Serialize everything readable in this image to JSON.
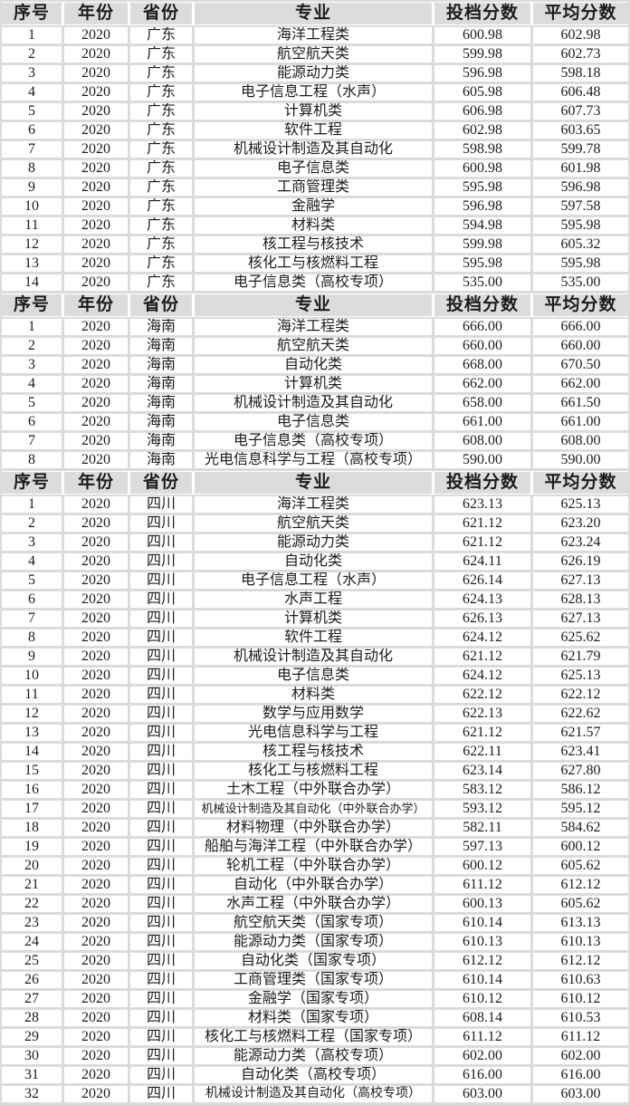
{
  "style_tokens": {
    "header_bg": "#dcdcdc",
    "grid_line": "#dbdbdb",
    "cell_bg": "#ffffff",
    "text_color": "#1c1c1c"
  },
  "table": {
    "column_headers": [
      "序号",
      "年份",
      "省份",
      "专业",
      "投档分数",
      "平均分数"
    ],
    "sections": [
      {
        "province": "广东",
        "rows": [
          [
            "1",
            "2020",
            "广东",
            "海洋工程类",
            "600.98",
            "602.98"
          ],
          [
            "2",
            "2020",
            "广东",
            "航空航天类",
            "599.98",
            "602.73"
          ],
          [
            "3",
            "2020",
            "广东",
            "能源动力类",
            "596.98",
            "598.18"
          ],
          [
            "4",
            "2020",
            "广东",
            "电子信息工程（水声）",
            "605.98",
            "606.48"
          ],
          [
            "5",
            "2020",
            "广东",
            "计算机类",
            "606.98",
            "607.73"
          ],
          [
            "6",
            "2020",
            "广东",
            "软件工程",
            "602.98",
            "603.65"
          ],
          [
            "7",
            "2020",
            "广东",
            "机械设计制造及其自动化",
            "598.98",
            "599.78"
          ],
          [
            "8",
            "2020",
            "广东",
            "电子信息类",
            "600.98",
            "601.98"
          ],
          [
            "9",
            "2020",
            "广东",
            "工商管理类",
            "595.98",
            "596.98"
          ],
          [
            "10",
            "2020",
            "广东",
            "金融学",
            "596.98",
            "597.58"
          ],
          [
            "11",
            "2020",
            "广东",
            "材料类",
            "594.98",
            "595.98"
          ],
          [
            "12",
            "2020",
            "广东",
            "核工程与核技术",
            "599.98",
            "605.32"
          ],
          [
            "13",
            "2020",
            "广东",
            "核化工与核燃料工程",
            "595.98",
            "595.98"
          ],
          [
            "14",
            "2020",
            "广东",
            "电子信息类（高校专项）",
            "535.00",
            "535.00"
          ]
        ]
      },
      {
        "province": "海南",
        "rows": [
          [
            "1",
            "2020",
            "海南",
            "海洋工程类",
            "666.00",
            "666.00"
          ],
          [
            "2",
            "2020",
            "海南",
            "航空航天类",
            "660.00",
            "660.00"
          ],
          [
            "3",
            "2020",
            "海南",
            "自动化类",
            "668.00",
            "670.50"
          ],
          [
            "4",
            "2020",
            "海南",
            "计算机类",
            "662.00",
            "662.00"
          ],
          [
            "5",
            "2020",
            "海南",
            "机械设计制造及其自动化",
            "658.00",
            "661.50"
          ],
          [
            "6",
            "2020",
            "海南",
            "电子信息类",
            "661.00",
            "661.00"
          ],
          [
            "7",
            "2020",
            "海南",
            "电子信息类（高校专项）",
            "608.00",
            "608.00"
          ],
          [
            "8",
            "2020",
            "海南",
            "光电信息科学与工程（高校专项）",
            "590.00",
            "590.00"
          ]
        ]
      },
      {
        "province": "四川",
        "rows": [
          [
            "1",
            "2020",
            "四川",
            "海洋工程类",
            "623.13",
            "625.13"
          ],
          [
            "2",
            "2020",
            "四川",
            "航空航天类",
            "621.12",
            "623.20"
          ],
          [
            "3",
            "2020",
            "四川",
            "能源动力类",
            "621.12",
            "623.24"
          ],
          [
            "4",
            "2020",
            "四川",
            "自动化类",
            "624.11",
            "626.19"
          ],
          [
            "5",
            "2020",
            "四川",
            "电子信息工程（水声）",
            "626.14",
            "627.13"
          ],
          [
            "6",
            "2020",
            "四川",
            "水声工程",
            "624.13",
            "628.13"
          ],
          [
            "7",
            "2020",
            "四川",
            "计算机类",
            "626.13",
            "627.13"
          ],
          [
            "8",
            "2020",
            "四川",
            "软件工程",
            "624.12",
            "625.62"
          ],
          [
            "9",
            "2020",
            "四川",
            "机械设计制造及其自动化",
            "621.12",
            "621.79"
          ],
          [
            "10",
            "2020",
            "四川",
            "电子信息类",
            "624.12",
            "625.13"
          ],
          [
            "11",
            "2020",
            "四川",
            "材料类",
            "622.12",
            "622.12"
          ],
          [
            "12",
            "2020",
            "四川",
            "数学与应用数学",
            "622.13",
            "622.62"
          ],
          [
            "13",
            "2020",
            "四川",
            "光电信息科学与工程",
            "621.12",
            "621.57"
          ],
          [
            "14",
            "2020",
            "四川",
            "核工程与核技术",
            "622.11",
            "623.41"
          ],
          [
            "15",
            "2020",
            "四川",
            "核化工与核燃料工程",
            "623.14",
            "627.80"
          ],
          [
            "16",
            "2020",
            "四川",
            "土木工程（中外联合办学）",
            "583.12",
            "586.12"
          ],
          [
            "17",
            "2020",
            "四川",
            "机械设计制造及其自动化（中外联合办学）",
            "593.12",
            "595.12"
          ],
          [
            "18",
            "2020",
            "四川",
            "材料物理（中外联合办学）",
            "582.11",
            "584.62"
          ],
          [
            "19",
            "2020",
            "四川",
            "船舶与海洋工程（中外联合办学）",
            "597.13",
            "600.12"
          ],
          [
            "20",
            "2020",
            "四川",
            "轮机工程（中外联合办学）",
            "600.12",
            "605.62"
          ],
          [
            "21",
            "2020",
            "四川",
            "自动化（中外联合办学）",
            "611.12",
            "612.12"
          ],
          [
            "22",
            "2020",
            "四川",
            "水声工程（中外联合办学）",
            "600.13",
            "605.62"
          ],
          [
            "23",
            "2020",
            "四川",
            "航空航天类（国家专项）",
            "610.14",
            "613.13"
          ],
          [
            "24",
            "2020",
            "四川",
            "能源动力类（国家专项）",
            "610.13",
            "610.13"
          ],
          [
            "25",
            "2020",
            "四川",
            "自动化类（国家专项）",
            "612.12",
            "612.12"
          ],
          [
            "26",
            "2020",
            "四川",
            "工商管理类（国家专项）",
            "610.14",
            "610.63"
          ],
          [
            "27",
            "2020",
            "四川",
            "金融学（国家专项）",
            "610.12",
            "610.12"
          ],
          [
            "28",
            "2020",
            "四川",
            "材料类（国家专项）",
            "608.14",
            "610.53"
          ],
          [
            "29",
            "2020",
            "四川",
            "核化工与核燃料工程（国家专项）",
            "611.12",
            "611.12"
          ],
          [
            "30",
            "2020",
            "四川",
            "能源动力类（高校专项）",
            "602.00",
            "602.00"
          ],
          [
            "31",
            "2020",
            "四川",
            "自动化类（高校专项）",
            "616.00",
            "616.00"
          ],
          [
            "32",
            "2020",
            "四川",
            "机械设计制造及其自动化（高校专项）",
            "603.00",
            "603.00"
          ]
        ]
      }
    ]
  }
}
